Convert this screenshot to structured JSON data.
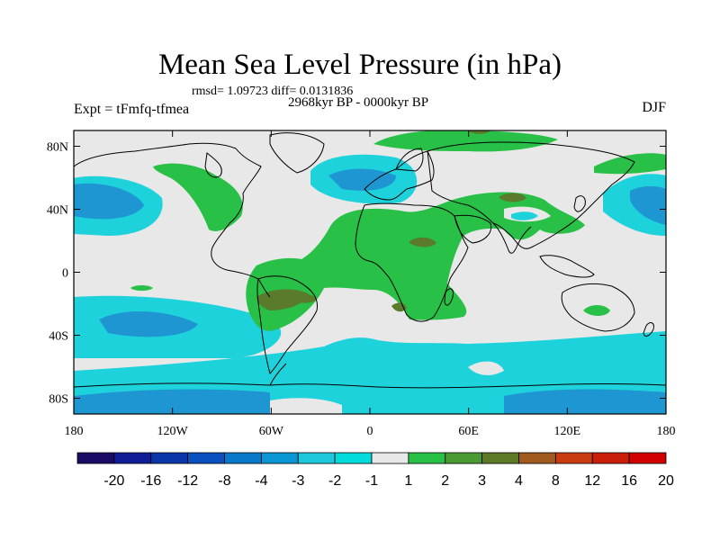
{
  "title": "Mean Sea Level Pressure (in hPa)",
  "stats": "rmsd= 1.09723 diff= 0.0131836",
  "period": "2968kyr BP - 0000kyr BP",
  "experiment": "Expt = tFmfq-tfmea",
  "season": "DJF",
  "map": {
    "lat_ticks": [
      "80N",
      "40N",
      "0",
      "40S",
      "80S"
    ],
    "lat_values": [
      80,
      40,
      0,
      -40,
      -80
    ],
    "lon_ticks": [
      "180",
      "120W",
      "60W",
      "0",
      "60E",
      "120E",
      "180"
    ],
    "lon_values": [
      -180,
      -120,
      -60,
      0,
      60,
      120,
      180
    ],
    "lat_range": [
      -90,
      90
    ],
    "lon_range": [
      -180,
      180
    ],
    "background_color": "#e8e8e8",
    "coast_color": "#000000"
  },
  "colorbar": {
    "labels": [
      "-20",
      "-16",
      "-12",
      "-8",
      "-4",
      "-3",
      "-2",
      "-1",
      "1",
      "2",
      "3",
      "4",
      "8",
      "12",
      "16",
      "20"
    ],
    "colors": [
      "#1a0c64",
      "#0f1e96",
      "#0a36aa",
      "#0a50be",
      "#0a78c8",
      "#0a96d2",
      "#1ec8dc",
      "#00dcdc",
      "#e8e8e8",
      "#28c046",
      "#4a9a32",
      "#5c7a28",
      "#a05a1e",
      "#c83c0f",
      "#c81e0a",
      "#d20000"
    ]
  },
  "fields": {
    "cyan": "#1ed2dc",
    "blue": "#1e96d2",
    "green": "#28c046",
    "olive": "#5a7a2c"
  }
}
